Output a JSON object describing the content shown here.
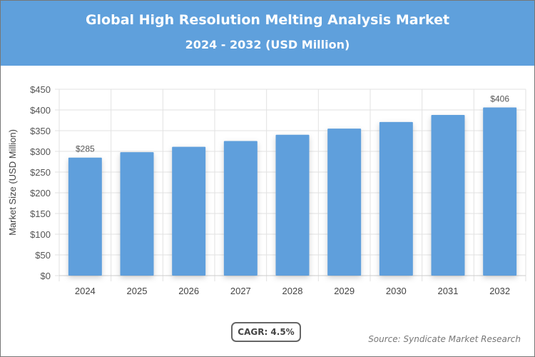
{
  "title": "Global High Resolution Melting Analysis Market",
  "subtitle": "2024 - 2032 (USD Million)",
  "cagr_label": "CAGR: 4.5%",
  "source": "Source: Syndicate Market Research",
  "colors": {
    "header": "#5fa0dc",
    "bar": "#5f9fdc"
  },
  "chart_data": {
    "type": "bar",
    "categories": [
      "2024",
      "2025",
      "2026",
      "2027",
      "2028",
      "2029",
      "2030",
      "2031",
      "2032"
    ],
    "values": [
      285,
      298,
      311,
      325,
      340,
      355,
      371,
      388,
      406
    ],
    "data_labels": {
      "2024": "$285",
      "2032": "$406"
    },
    "ylabel": "Market Size (USD Million)",
    "xlabel": "",
    "ylim": [
      0,
      450
    ],
    "yticks": [
      0,
      50,
      100,
      150,
      200,
      250,
      300,
      350,
      400,
      450
    ],
    "ytick_format": "$",
    "grid": true
  }
}
